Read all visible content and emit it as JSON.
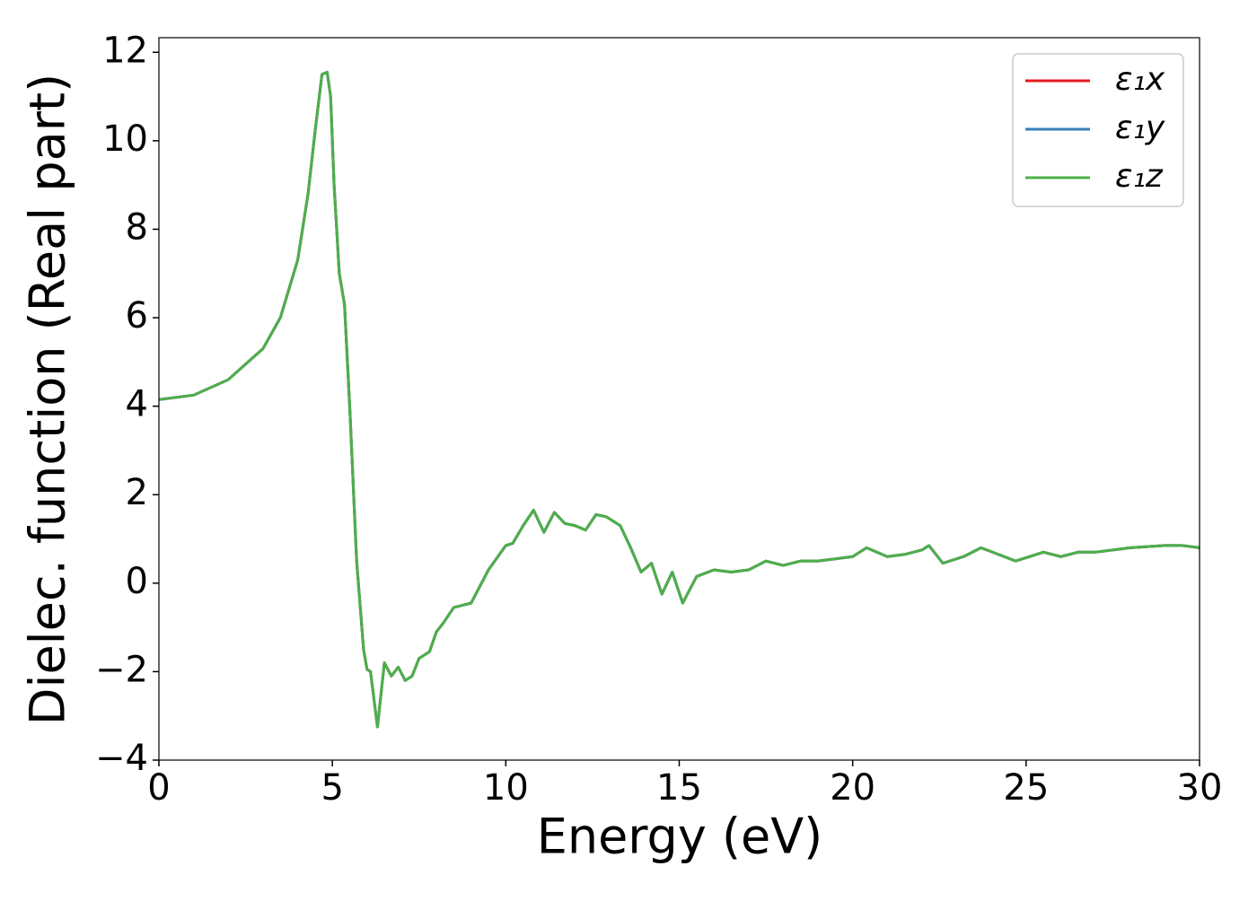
{
  "chart_data": {
    "type": "line",
    "xlabel": "Energy (eV)",
    "ylabel": "Dielec. function (Real part)",
    "x": [
      0,
      1,
      2,
      3,
      3.5,
      4,
      4.3,
      4.5,
      4.7,
      4.85,
      4.95,
      5.05,
      5.2,
      5.35,
      5.5,
      5.7,
      5.9,
      6.0,
      6.1,
      6.3,
      6.5,
      6.7,
      6.9,
      7.1,
      7.3,
      7.5,
      7.8,
      8.0,
      8.2,
      8.5,
      9.0,
      9.5,
      10.0,
      10.2,
      10.5,
      10.8,
      11.1,
      11.4,
      11.7,
      12.0,
      12.3,
      12.6,
      12.9,
      13.3,
      13.6,
      13.9,
      14.2,
      14.5,
      14.8,
      15.1,
      15.5,
      16,
      16.5,
      17,
      17.5,
      18,
      18.5,
      19,
      19.5,
      20,
      20.4,
      21,
      21.5,
      22,
      22.2,
      22.6,
      23.2,
      23.7,
      24.2,
      24.7,
      25.5,
      26,
      26.5,
      27,
      28,
      29,
      29.5,
      30
    ],
    "series": [
      {
        "name": "ε₁x",
        "color": "#e41a1c",
        "values": [
          4.15,
          4.25,
          4.6,
          5.3,
          6.0,
          7.3,
          8.8,
          10.2,
          11.5,
          11.55,
          11.0,
          9.0,
          7.0,
          6.3,
          4.0,
          0.5,
          -1.5,
          -1.95,
          -2.0,
          -3.25,
          -1.8,
          -2.1,
          -1.9,
          -2.2,
          -2.1,
          -1.7,
          -1.55,
          -1.1,
          -0.9,
          -0.55,
          -0.45,
          0.3,
          0.85,
          0.9,
          1.3,
          1.65,
          1.15,
          1.6,
          1.35,
          1.3,
          1.2,
          1.55,
          1.5,
          1.3,
          0.8,
          0.25,
          0.45,
          -0.25,
          0.25,
          -0.45,
          0.15,
          0.3,
          0.25,
          0.3,
          0.5,
          0.4,
          0.5,
          0.5,
          0.55,
          0.6,
          0.8,
          0.6,
          0.65,
          0.75,
          0.85,
          0.45,
          0.6,
          0.8,
          0.65,
          0.5,
          0.7,
          0.6,
          0.7,
          0.7,
          0.8,
          0.85,
          0.85,
          0.8
        ]
      },
      {
        "name": "ε₁y",
        "color": "#377eb8",
        "values": [
          4.15,
          4.25,
          4.6,
          5.3,
          6.0,
          7.3,
          8.8,
          10.2,
          11.5,
          11.55,
          11.0,
          9.0,
          7.0,
          6.3,
          4.0,
          0.5,
          -1.5,
          -1.95,
          -2.0,
          -3.25,
          -1.8,
          -2.1,
          -1.9,
          -2.2,
          -2.1,
          -1.7,
          -1.55,
          -1.1,
          -0.9,
          -0.55,
          -0.45,
          0.3,
          0.85,
          0.9,
          1.3,
          1.65,
          1.15,
          1.6,
          1.35,
          1.3,
          1.2,
          1.55,
          1.5,
          1.3,
          0.8,
          0.25,
          0.45,
          -0.25,
          0.25,
          -0.45,
          0.15,
          0.3,
          0.25,
          0.3,
          0.5,
          0.4,
          0.5,
          0.5,
          0.55,
          0.6,
          0.8,
          0.6,
          0.65,
          0.75,
          0.85,
          0.45,
          0.6,
          0.8,
          0.65,
          0.5,
          0.7,
          0.6,
          0.7,
          0.7,
          0.8,
          0.85,
          0.85,
          0.8
        ]
      },
      {
        "name": "ε₁z",
        "color": "#4daf4a",
        "values": [
          4.15,
          4.25,
          4.6,
          5.3,
          6.0,
          7.3,
          8.8,
          10.2,
          11.5,
          11.55,
          11.0,
          9.0,
          7.0,
          6.3,
          4.0,
          0.5,
          -1.5,
          -1.95,
          -2.0,
          -3.25,
          -1.8,
          -2.1,
          -1.9,
          -2.2,
          -2.1,
          -1.7,
          -1.55,
          -1.1,
          -0.9,
          -0.55,
          -0.45,
          0.3,
          0.85,
          0.9,
          1.3,
          1.65,
          1.15,
          1.6,
          1.35,
          1.3,
          1.2,
          1.55,
          1.5,
          1.3,
          0.8,
          0.25,
          0.45,
          -0.25,
          0.25,
          -0.45,
          0.15,
          0.3,
          0.25,
          0.3,
          0.5,
          0.4,
          0.5,
          0.5,
          0.55,
          0.6,
          0.8,
          0.6,
          0.65,
          0.75,
          0.85,
          0.45,
          0.6,
          0.8,
          0.65,
          0.5,
          0.7,
          0.6,
          0.7,
          0.7,
          0.8,
          0.85,
          0.85,
          0.8
        ]
      }
    ],
    "xlim": [
      0,
      30
    ],
    "xticks": [
      0,
      5,
      10,
      15,
      20,
      25,
      30
    ],
    "ylim": [
      -4,
      12.33
    ],
    "yticks": [
      {
        "value": -4,
        "label": "−4"
      },
      {
        "value": -2,
        "label": "−2"
      },
      0,
      2,
      4,
      6,
      8,
      10,
      12
    ],
    "legend": "upper right"
  }
}
